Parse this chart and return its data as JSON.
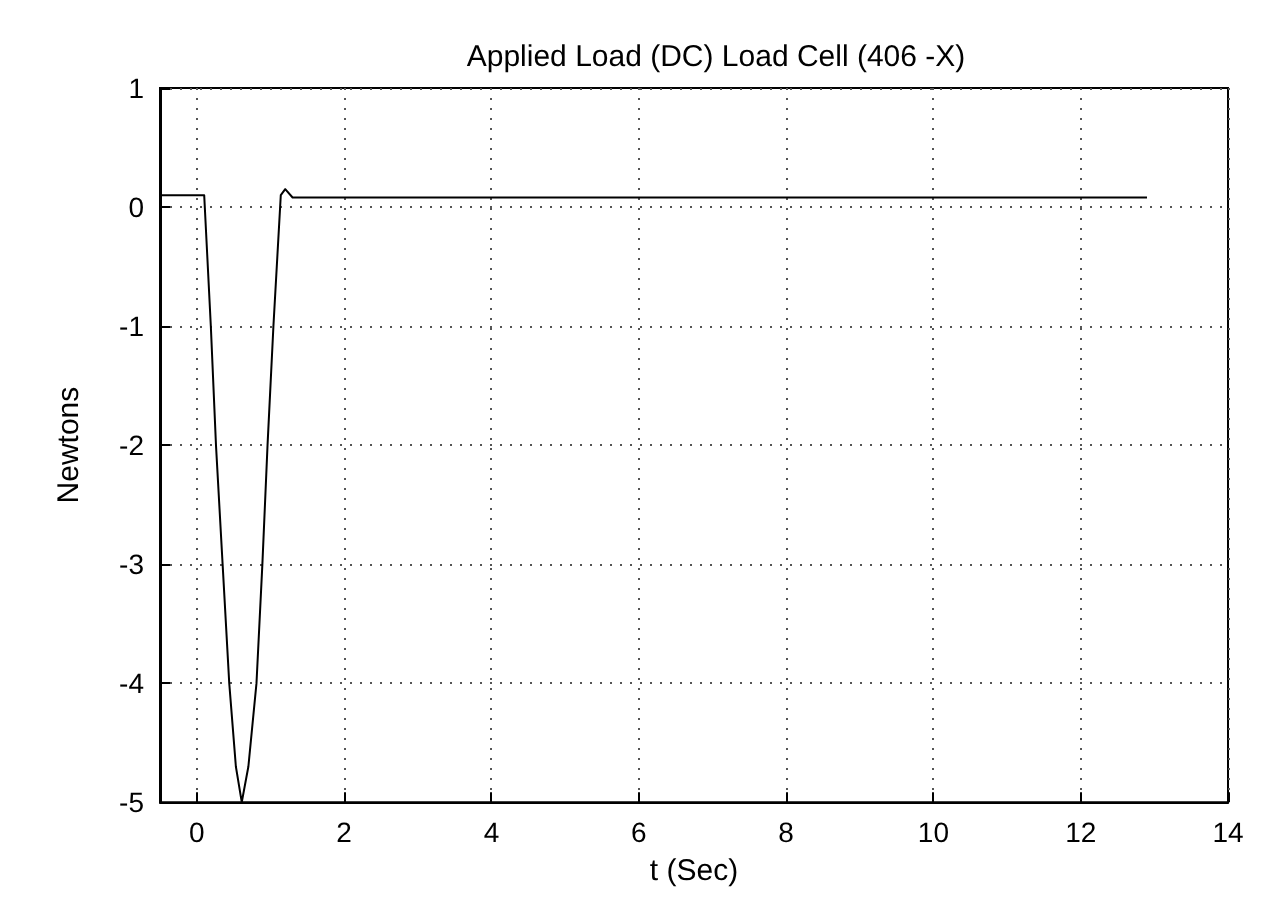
{
  "chart_data": {
    "type": "line",
    "title": "Applied Load (DC) Load Cell (406 -X)",
    "xlabel": "t (Sec)",
    "ylabel": "Newtons",
    "x": [
      -0.5,
      0.1,
      0.19,
      0.26,
      0.35,
      0.44,
      0.53,
      0.61,
      0.7,
      0.81,
      0.89,
      0.96,
      1.04,
      1.14,
      1.2,
      1.3,
      3,
      6,
      9,
      12.9
    ],
    "series": [
      {
        "color": "#000000",
        "values": [
          0.1,
          0.1,
          -1,
          -2,
          -3,
          -4,
          -4.7,
          -5,
          -4.7,
          -4,
          -3,
          -2,
          -1,
          0.1,
          0.15,
          0.08,
          0.08,
          0.08,
          0.08,
          0.08
        ]
      }
    ],
    "xlim": [
      -0.5,
      14
    ],
    "xticks": [
      0,
      2,
      4,
      6,
      8,
      10,
      12,
      14
    ],
    "ylim": [
      -5,
      1
    ],
    "yticks": [
      -5,
      -4,
      -3,
      -2,
      -1,
      0,
      1
    ],
    "grid": true,
    "marker": "none",
    "line_style": "solid"
  }
}
